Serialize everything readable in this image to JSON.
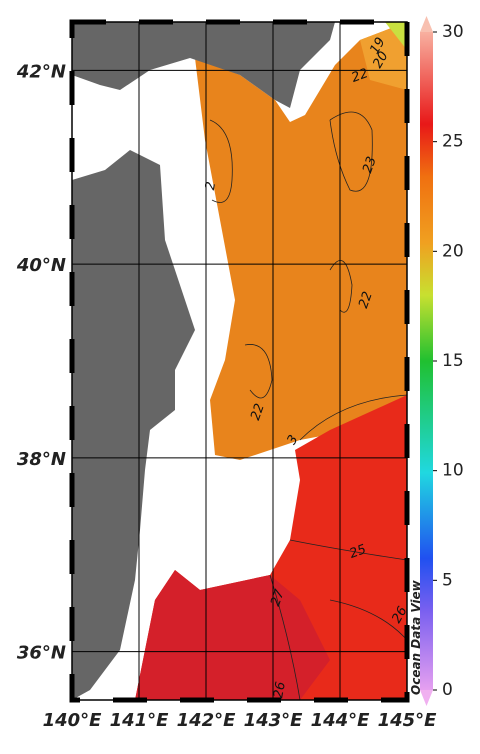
{
  "map": {
    "xlim": [
      140,
      145
    ],
    "ylim": [
      35.5,
      42.5
    ],
    "xticks": [
      {
        "value": 140,
        "label": "140°E"
      },
      {
        "value": 141,
        "label": "141°E"
      },
      {
        "value": 142,
        "label": "142°E"
      },
      {
        "value": 143,
        "label": "143°E"
      },
      {
        "value": 144,
        "label": "144°E"
      },
      {
        "value": 145,
        "label": "145°E"
      }
    ],
    "yticks": [
      {
        "value": 36,
        "label": "36°N"
      },
      {
        "value": 38,
        "label": "38°N"
      },
      {
        "value": 40,
        "label": "40°N"
      },
      {
        "value": 42,
        "label": "42°N"
      }
    ]
  },
  "colorbar": {
    "ylim": [
      0,
      30
    ],
    "yticks": [
      0,
      5,
      10,
      15,
      20,
      25,
      30
    ]
  },
  "contour_labels": [
    19,
    20,
    22,
    23,
    2,
    22,
    22,
    3,
    25,
    27,
    26,
    26
  ],
  "watermark": "Ocean Data View"
}
